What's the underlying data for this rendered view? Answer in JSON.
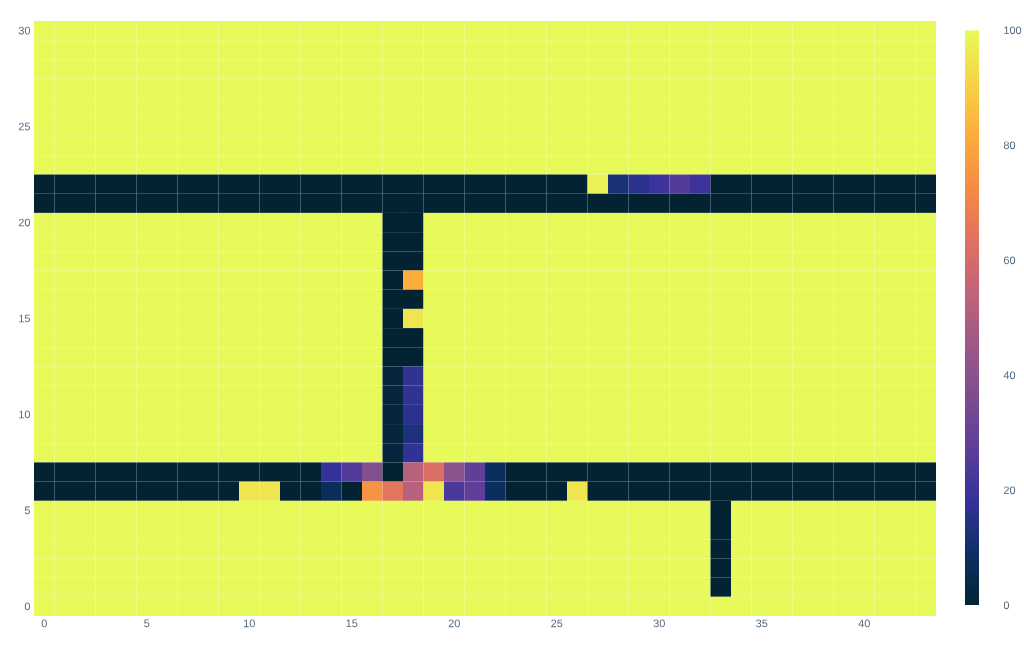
{
  "chart_data": {
    "type": "heatmap",
    "categories": [
      "0",
      null,
      null,
      null,
      null,
      "5",
      null,
      null,
      null,
      null,
      "10",
      null,
      null,
      null,
      null,
      "15",
      null,
      null,
      null,
      null,
      "20",
      null,
      null,
      null,
      null,
      "25",
      null,
      null,
      null,
      null,
      "30",
      null,
      null,
      null,
      null,
      "35",
      null,
      null,
      null,
      null,
      "40",
      null,
      null,
      null
    ],
    "y_categories": [
      "30",
      null,
      null,
      null,
      null,
      "25",
      null,
      null,
      null,
      null,
      "20",
      null,
      null,
      null,
      null,
      "15",
      null,
      null,
      null,
      null,
      "10",
      null,
      null,
      null,
      null,
      "5",
      null,
      null,
      null,
      null,
      "0"
    ],
    "clim": [
      0,
      100
    ],
    "cticks": [
      0,
      20,
      40,
      60,
      80,
      100
    ],
    "cells": [
      [
        100,
        100,
        100,
        100,
        100,
        100,
        100,
        100,
        100,
        100,
        100,
        100,
        100,
        100,
        100,
        100,
        100,
        100,
        100,
        100,
        100,
        100,
        100,
        100,
        100,
        100,
        100,
        100,
        100,
        100,
        100,
        100,
        100,
        100,
        100,
        100,
        100,
        100,
        100,
        100,
        100,
        100,
        100,
        100
      ],
      [
        100,
        100,
        100,
        100,
        100,
        100,
        100,
        100,
        100,
        100,
        100,
        100,
        100,
        100,
        100,
        100,
        100,
        100,
        100,
        100,
        100,
        100,
        100,
        100,
        100,
        100,
        100,
        100,
        100,
        100,
        100,
        100,
        100,
        100,
        100,
        100,
        100,
        100,
        100,
        100,
        100,
        100,
        100,
        100
      ],
      [
        100,
        100,
        100,
        100,
        100,
        100,
        100,
        100,
        100,
        100,
        100,
        100,
        100,
        100,
        100,
        100,
        100,
        100,
        100,
        100,
        100,
        100,
        100,
        100,
        100,
        100,
        100,
        100,
        100,
        100,
        100,
        100,
        100,
        100,
        100,
        100,
        100,
        100,
        100,
        100,
        100,
        100,
        100,
        100
      ],
      [
        100,
        100,
        100,
        100,
        100,
        100,
        100,
        100,
        100,
        100,
        100,
        100,
        100,
        100,
        100,
        100,
        100,
        100,
        100,
        100,
        100,
        100,
        100,
        100,
        100,
        100,
        100,
        100,
        100,
        100,
        100,
        100,
        100,
        100,
        100,
        100,
        100,
        100,
        100,
        100,
        100,
        100,
        100,
        100
      ],
      [
        100,
        100,
        100,
        100,
        100,
        100,
        100,
        100,
        100,
        100,
        100,
        100,
        100,
        100,
        100,
        100,
        100,
        100,
        100,
        100,
        100,
        100,
        100,
        100,
        100,
        100,
        100,
        100,
        100,
        100,
        100,
        100,
        100,
        100,
        100,
        100,
        100,
        100,
        100,
        100,
        100,
        100,
        100,
        100
      ],
      [
        100,
        100,
        100,
        100,
        100,
        100,
        100,
        100,
        100,
        100,
        100,
        100,
        100,
        100,
        100,
        100,
        100,
        100,
        100,
        100,
        100,
        100,
        100,
        100,
        100,
        100,
        100,
        100,
        100,
        100,
        100,
        100,
        100,
        100,
        100,
        100,
        100,
        100,
        100,
        100,
        100,
        100,
        100,
        100
      ],
      [
        100,
        100,
        100,
        100,
        100,
        100,
        100,
        100,
        100,
        100,
        100,
        100,
        100,
        100,
        100,
        100,
        100,
        100,
        100,
        100,
        100,
        100,
        100,
        100,
        100,
        100,
        100,
        100,
        100,
        100,
        100,
        100,
        100,
        100,
        100,
        100,
        100,
        100,
        100,
        100,
        100,
        100,
        100,
        100
      ],
      [
        100,
        100,
        100,
        100,
        100,
        100,
        100,
        100,
        100,
        100,
        100,
        100,
        100,
        100,
        100,
        100,
        100,
        100,
        100,
        100,
        100,
        100,
        100,
        100,
        100,
        100,
        100,
        100,
        100,
        100,
        100,
        100,
        100,
        100,
        100,
        100,
        100,
        100,
        100,
        100,
        100,
        100,
        100,
        100
      ],
      [
        0,
        0,
        0,
        0,
        0,
        0,
        0,
        0,
        0,
        0,
        0,
        0,
        0,
        0,
        0,
        0,
        0,
        0,
        0,
        0,
        0,
        0,
        0,
        0,
        0,
        0,
        0,
        98,
        12,
        16,
        20,
        25,
        20,
        0,
        0,
        0,
        0,
        0,
        0,
        0,
        0,
        0,
        0,
        0
      ],
      [
        0,
        0,
        0,
        0,
        0,
        0,
        0,
        0,
        0,
        0,
        0,
        0,
        0,
        0,
        0,
        0,
        0,
        0,
        0,
        0,
        0,
        0,
        0,
        0,
        0,
        0,
        0,
        0,
        0,
        0,
        0,
        0,
        0,
        0,
        0,
        0,
        0,
        0,
        0,
        0,
        0,
        0,
        0,
        0
      ],
      [
        100,
        100,
        100,
        100,
        100,
        100,
        100,
        100,
        100,
        100,
        100,
        100,
        100,
        100,
        100,
        100,
        100,
        0,
        0,
        100,
        100,
        100,
        100,
        100,
        100,
        100,
        100,
        100,
        100,
        100,
        100,
        100,
        100,
        100,
        100,
        100,
        100,
        100,
        100,
        100,
        100,
        100,
        100,
        100
      ],
      [
        100,
        100,
        100,
        100,
        100,
        100,
        100,
        100,
        100,
        100,
        100,
        100,
        100,
        100,
        100,
        100,
        100,
        0,
        0,
        100,
        100,
        100,
        100,
        100,
        100,
        100,
        100,
        100,
        100,
        100,
        100,
        100,
        100,
        100,
        100,
        100,
        100,
        100,
        100,
        100,
        100,
        100,
        100,
        100
      ],
      [
        100,
        100,
        100,
        100,
        100,
        100,
        100,
        100,
        100,
        100,
        100,
        100,
        100,
        100,
        100,
        100,
        100,
        0,
        0,
        100,
        100,
        100,
        100,
        100,
        100,
        100,
        100,
        100,
        100,
        100,
        100,
        100,
        100,
        100,
        100,
        100,
        100,
        100,
        100,
        100,
        100,
        100,
        100,
        100
      ],
      [
        100,
        100,
        100,
        100,
        100,
        100,
        100,
        100,
        100,
        100,
        100,
        100,
        100,
        100,
        100,
        100,
        100,
        0,
        82,
        100,
        100,
        100,
        100,
        100,
        100,
        100,
        100,
        100,
        100,
        100,
        100,
        100,
        100,
        100,
        100,
        100,
        100,
        100,
        100,
        100,
        100,
        100,
        100,
        100
      ],
      [
        100,
        100,
        100,
        100,
        100,
        100,
        100,
        100,
        100,
        100,
        100,
        100,
        100,
        100,
        100,
        100,
        100,
        0,
        0,
        100,
        100,
        100,
        100,
        100,
        100,
        100,
        100,
        100,
        100,
        100,
        100,
        100,
        100,
        100,
        100,
        100,
        100,
        100,
        100,
        100,
        100,
        100,
        100,
        100
      ],
      [
        100,
        100,
        100,
        100,
        100,
        100,
        100,
        100,
        100,
        100,
        100,
        100,
        100,
        100,
        100,
        100,
        100,
        0,
        95,
        100,
        100,
        100,
        100,
        100,
        100,
        100,
        100,
        100,
        100,
        100,
        100,
        100,
        100,
        100,
        100,
        100,
        100,
        100,
        100,
        100,
        100,
        100,
        100,
        100
      ],
      [
        100,
        100,
        100,
        100,
        100,
        100,
        100,
        100,
        100,
        100,
        100,
        100,
        100,
        100,
        100,
        100,
        100,
        0,
        0,
        100,
        100,
        100,
        100,
        100,
        100,
        100,
        100,
        100,
        100,
        100,
        100,
        100,
        100,
        100,
        100,
        100,
        100,
        100,
        100,
        100,
        100,
        100,
        100,
        100
      ],
      [
        100,
        100,
        100,
        100,
        100,
        100,
        100,
        100,
        100,
        100,
        100,
        100,
        100,
        100,
        100,
        100,
        100,
        0,
        0,
        100,
        100,
        100,
        100,
        100,
        100,
        100,
        100,
        100,
        100,
        100,
        100,
        100,
        100,
        100,
        100,
        100,
        100,
        100,
        100,
        100,
        100,
        100,
        100,
        100
      ],
      [
        100,
        100,
        100,
        100,
        100,
        100,
        100,
        100,
        100,
        100,
        100,
        100,
        100,
        100,
        100,
        100,
        100,
        2,
        17,
        100,
        100,
        100,
        100,
        100,
        100,
        100,
        100,
        100,
        100,
        100,
        100,
        100,
        100,
        100,
        100,
        100,
        100,
        100,
        100,
        100,
        100,
        100,
        100,
        100
      ],
      [
        100,
        100,
        100,
        100,
        100,
        100,
        100,
        100,
        100,
        100,
        100,
        100,
        100,
        100,
        100,
        100,
        100,
        2,
        17,
        100,
        100,
        100,
        100,
        100,
        100,
        100,
        100,
        100,
        100,
        100,
        100,
        100,
        100,
        100,
        100,
        100,
        100,
        100,
        100,
        100,
        100,
        100,
        100,
        100
      ],
      [
        100,
        100,
        100,
        100,
        100,
        100,
        100,
        100,
        100,
        100,
        100,
        100,
        100,
        100,
        100,
        100,
        100,
        2,
        16,
        100,
        100,
        100,
        100,
        100,
        100,
        100,
        100,
        100,
        100,
        100,
        100,
        100,
        100,
        100,
        100,
        100,
        100,
        100,
        100,
        100,
        100,
        100,
        100,
        100
      ],
      [
        100,
        100,
        100,
        100,
        100,
        100,
        100,
        100,
        100,
        100,
        100,
        100,
        100,
        100,
        100,
        100,
        100,
        2,
        13,
        100,
        100,
        100,
        100,
        100,
        100,
        100,
        100,
        100,
        100,
        100,
        100,
        100,
        100,
        100,
        100,
        100,
        100,
        100,
        100,
        100,
        100,
        100,
        100,
        100
      ],
      [
        100,
        100,
        100,
        100,
        100,
        100,
        100,
        100,
        100,
        100,
        100,
        100,
        100,
        100,
        100,
        100,
        100,
        2,
        17,
        100,
        100,
        100,
        100,
        100,
        100,
        100,
        100,
        100,
        100,
        100,
        100,
        100,
        100,
        100,
        100,
        100,
        100,
        100,
        100,
        100,
        100,
        100,
        100,
        100
      ],
      [
        0,
        0,
        0,
        0,
        0,
        0,
        0,
        0,
        0,
        0,
        0,
        0,
        0,
        0,
        18,
        25,
        38,
        0,
        52,
        62,
        40,
        28,
        8,
        0,
        0,
        0,
        0,
        0,
        0,
        0,
        0,
        0,
        0,
        0,
        0,
        0,
        0,
        0,
        0,
        0,
        0,
        0,
        0,
        0
      ],
      [
        0,
        0,
        0,
        0,
        0,
        0,
        0,
        0,
        0,
        0,
        95,
        95,
        0,
        0,
        7,
        0,
        75,
        65,
        52,
        95,
        23,
        28,
        8,
        0,
        0,
        0,
        95,
        0,
        0,
        0,
        0,
        0,
        0,
        0,
        0,
        0,
        0,
        0,
        0,
        0,
        0,
        0,
        0,
        0
      ],
      [
        100,
        100,
        100,
        100,
        100,
        100,
        100,
        100,
        100,
        100,
        100,
        100,
        100,
        100,
        100,
        100,
        100,
        100,
        100,
        100,
        100,
        100,
        100,
        100,
        100,
        100,
        100,
        100,
        100,
        100,
        100,
        100,
        100,
        0,
        100,
        100,
        100,
        100,
        100,
        100,
        100,
        100,
        100,
        100
      ],
      [
        100,
        100,
        100,
        100,
        100,
        100,
        100,
        100,
        100,
        100,
        100,
        100,
        100,
        100,
        100,
        100,
        100,
        100,
        100,
        100,
        100,
        100,
        100,
        100,
        100,
        100,
        100,
        100,
        100,
        100,
        100,
        100,
        100,
        0,
        100,
        100,
        100,
        100,
        100,
        100,
        100,
        100,
        100,
        100
      ],
      [
        100,
        100,
        100,
        100,
        100,
        100,
        100,
        100,
        100,
        100,
        100,
        100,
        100,
        100,
        100,
        100,
        100,
        100,
        100,
        100,
        100,
        100,
        100,
        100,
        100,
        100,
        100,
        100,
        100,
        100,
        100,
        100,
        100,
        0,
        100,
        100,
        100,
        100,
        100,
        100,
        100,
        100,
        100,
        100
      ],
      [
        100,
        100,
        100,
        100,
        100,
        100,
        100,
        100,
        100,
        100,
        100,
        100,
        100,
        100,
        100,
        100,
        100,
        100,
        100,
        100,
        100,
        100,
        100,
        100,
        100,
        100,
        100,
        100,
        100,
        100,
        100,
        100,
        100,
        0,
        100,
        100,
        100,
        100,
        100,
        100,
        100,
        100,
        100,
        100
      ],
      [
        100,
        100,
        100,
        100,
        100,
        100,
        100,
        100,
        100,
        100,
        100,
        100,
        100,
        100,
        100,
        100,
        100,
        100,
        100,
        100,
        100,
        100,
        100,
        100,
        100,
        100,
        100,
        100,
        100,
        100,
        100,
        100,
        100,
        0,
        100,
        100,
        100,
        100,
        100,
        100,
        100,
        100,
        100,
        100
      ],
      [
        100,
        100,
        100,
        100,
        100,
        100,
        100,
        100,
        100,
        100,
        100,
        100,
        100,
        100,
        100,
        100,
        100,
        100,
        100,
        100,
        100,
        100,
        100,
        100,
        100,
        100,
        100,
        100,
        100,
        100,
        100,
        100,
        100,
        100,
        100,
        100,
        100,
        100,
        100,
        100,
        100,
        100,
        100,
        100
      ]
    ]
  }
}
